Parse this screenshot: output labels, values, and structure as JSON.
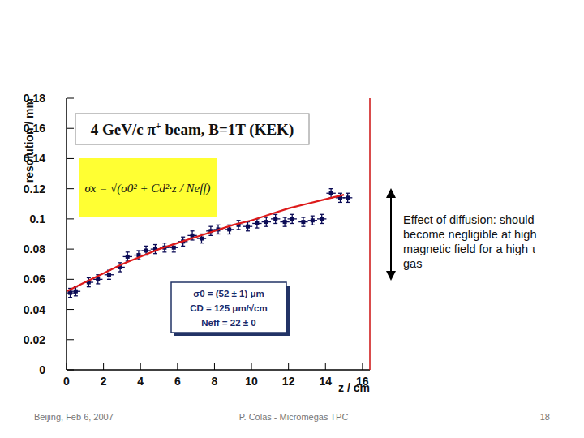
{
  "chart_data": {
    "type": "scatter",
    "title": "4 GeV/c π+ beam, B=1T (KEK)",
    "x_label": "z / cm",
    "y_label": "resolution / mm",
    "formula": "σx = √(σ0² + Cd²·z / Neff)",
    "fit_results": [
      "σ0 = (52 ± 1) μm",
      "CD = 125 μm/√cm",
      "Neff = 22 ± 0"
    ],
    "xlim": [
      0,
      16.4
    ],
    "ylim": [
      0,
      0.18
    ],
    "xticks": [
      0,
      2,
      4,
      6,
      8,
      10,
      12,
      14,
      16
    ],
    "yticks": [
      0,
      0.02,
      0.04,
      0.06,
      0.08,
      0.1,
      0.12,
      0.14,
      0.16,
      0.18
    ],
    "series": [
      {
        "type": "scatter",
        "color": "#0b0b55",
        "marker": "square",
        "x": [
          0.2,
          0.5,
          1.2,
          1.7,
          2.3,
          2.9,
          3.3,
          3.9,
          4.3,
          4.8,
          5.3,
          5.8,
          6.3,
          6.8,
          7.3,
          7.8,
          8.2,
          8.8,
          9.3,
          9.8,
          10.3,
          10.8,
          11.3,
          11.8,
          12.2,
          12.8,
          13.3,
          13.8,
          14.3,
          14.8,
          15.2
        ],
        "values": [
          0.051,
          0.052,
          0.058,
          0.06,
          0.063,
          0.068,
          0.075,
          0.076,
          0.079,
          0.08,
          0.081,
          0.081,
          0.085,
          0.089,
          0.087,
          0.092,
          0.093,
          0.093,
          0.096,
          0.095,
          0.097,
          0.098,
          0.1,
          0.098,
          0.1,
          0.098,
          0.099,
          0.1,
          0.117,
          0.114,
          0.114
        ],
        "errors": [
          0.003,
          0.003,
          0.003,
          0.003,
          0.003,
          0.003,
          0.003,
          0.003,
          0.003,
          0.003,
          0.003,
          0.003,
          0.003,
          0.003,
          0.003,
          0.003,
          0.003,
          0.003,
          0.003,
          0.003,
          0.003,
          0.003,
          0.003,
          0.003,
          0.003,
          0.003,
          0.003,
          0.003,
          0.003,
          0.003,
          0.003
        ],
        "x_errors": [
          0.25,
          0.25,
          0.25,
          0.25,
          0.25,
          0.25,
          0.25,
          0.25,
          0.25,
          0.25,
          0.25,
          0.25,
          0.25,
          0.25,
          0.25,
          0.25,
          0.25,
          0.25,
          0.25,
          0.25,
          0.25,
          0.25,
          0.25,
          0.25,
          0.25,
          0.25,
          0.25,
          0.25,
          0.25,
          0.25,
          0.25
        ]
      },
      {
        "type": "line",
        "color": "#dd1a1a",
        "line_style": "solid",
        "x": [
          0,
          1,
          2,
          3,
          4,
          5,
          6,
          7,
          8,
          9,
          10,
          11,
          12,
          13,
          14,
          15
        ],
        "values": [
          0.052,
          0.058,
          0.064,
          0.07,
          0.075,
          0.08,
          0.084,
          0.088,
          0.092,
          0.096,
          0.099,
          0.103,
          0.107,
          0.11,
          0.113,
          0.116
        ]
      }
    ]
  },
  "slide": {
    "note": "Effect of diffusion: should become negligible at high magnetic field for a high τ gas",
    "footer_left": "Beijing, Feb 6, 2007",
    "footer_center": "P. Colas - Micromegas TPC",
    "footer_right": "18"
  }
}
